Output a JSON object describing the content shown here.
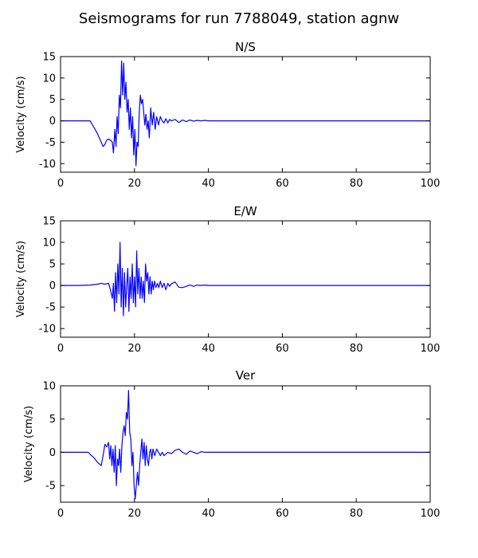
{
  "title": "Seismograms for run 7788049, station agnw",
  "chart_data": [
    {
      "type": "line",
      "title": "N/S",
      "xlabel": "",
      "ylabel": "Velocity (cm/s)",
      "xlim": [
        0,
        100
      ],
      "ylim": [
        -12,
        15
      ],
      "xticks": [
        0,
        20,
        40,
        60,
        80,
        100
      ],
      "yticks": [
        -10,
        -5,
        0,
        5,
        10,
        15
      ],
      "color": "#0000ff",
      "series": [
        {
          "x": [
            0,
            8,
            9,
            10,
            11,
            11.5,
            12,
            12.5,
            13,
            13.5,
            14,
            14.3,
            14.7,
            15,
            15.3,
            15.6,
            15.9,
            16.2,
            16.5,
            16.8,
            17.1,
            17.4,
            17.7,
            18,
            18.3,
            18.6,
            18.9,
            19.2,
            19.5,
            19.8,
            20.1,
            20.4,
            20.7,
            21,
            21.3,
            21.6,
            21.9,
            22.2,
            22.5,
            22.8,
            23.1,
            23.4,
            23.7,
            24,
            24.4,
            24.8,
            25.2,
            25.6,
            26,
            26.5,
            27,
            27.5,
            28,
            28.5,
            29,
            29.5,
            30,
            31,
            32,
            33,
            34,
            35,
            36,
            37,
            38,
            39,
            40,
            41,
            42,
            43,
            44,
            45,
            50,
            60,
            70,
            80,
            90,
            100
          ],
          "y": [
            0,
            0,
            -1.5,
            -3,
            -5,
            -6,
            -5.5,
            -4.5,
            -4.3,
            -4.5,
            -5,
            -7.5,
            -2,
            -6,
            1,
            -3,
            6,
            3,
            14,
            6,
            13.5,
            5,
            9,
            2,
            5,
            -2,
            3,
            -4,
            1,
            -8,
            -2,
            -10.5,
            -5,
            -6,
            2,
            6,
            4,
            5,
            2,
            -1,
            1.5,
            -2,
            0,
            -4,
            3,
            -1,
            2,
            -2,
            1,
            -1,
            1,
            0,
            -0.5,
            0.5,
            -0.5,
            0.3,
            0,
            0.3,
            -0.4,
            0.2,
            -0.2,
            0.2,
            -0.1,
            0.1,
            0,
            0.1,
            0,
            0,
            0,
            0,
            0,
            0,
            0,
            0,
            0,
            0,
            0,
            0
          ]
        }
      ]
    },
    {
      "type": "line",
      "title": "E/W",
      "xlabel": "",
      "ylabel": "Velocity (cm/s)",
      "xlim": [
        0,
        100
      ],
      "ylim": [
        -12,
        15
      ],
      "xticks": [
        0,
        20,
        40,
        60,
        80,
        100
      ],
      "yticks": [
        -10,
        -5,
        0,
        5,
        10,
        15
      ],
      "color": "#0000ff",
      "series": [
        {
          "x": [
            0,
            5,
            8,
            10,
            11,
            12,
            13,
            13.5,
            14,
            14.3,
            14.6,
            14.9,
            15.2,
            15.5,
            15.8,
            16.1,
            16.4,
            16.7,
            17,
            17.3,
            17.6,
            17.9,
            18.2,
            18.5,
            18.8,
            19.1,
            19.4,
            19.7,
            20,
            20.3,
            20.6,
            20.9,
            21.2,
            21.5,
            21.8,
            22.1,
            22.4,
            22.7,
            23,
            23.3,
            23.6,
            23.9,
            24.2,
            24.5,
            24.8,
            25.1,
            25.4,
            25.8,
            26.2,
            26.6,
            27,
            27.5,
            28,
            28.5,
            29,
            29.5,
            30,
            31,
            32,
            33,
            34,
            35,
            36,
            37,
            38,
            39,
            40,
            42,
            44,
            46,
            50,
            60,
            70,
            80,
            90,
            100
          ],
          "y": [
            0,
            0,
            0.1,
            0.3,
            0.5,
            0.3,
            0.5,
            -1,
            -3,
            0.5,
            -6,
            3,
            -4,
            5,
            -2,
            10,
            -5,
            4,
            -7,
            3,
            -5,
            0,
            4,
            -6,
            2,
            -3,
            5,
            -4,
            2,
            -5,
            8,
            -2,
            4,
            -3,
            2,
            -3,
            1,
            -4,
            5,
            1,
            3,
            -2,
            2,
            -2,
            1,
            -1,
            1,
            -0.5,
            0.5,
            -0.5,
            1,
            -0.5,
            0.5,
            -1,
            0.5,
            -0.2,
            0.4,
            0.8,
            -0.4,
            -0.5,
            -0.2,
            0.1,
            -0.2,
            0.1,
            0,
            0.1,
            0,
            0,
            0,
            0,
            0,
            0,
            0,
            0,
            0,
            0
          ]
        }
      ]
    },
    {
      "type": "line",
      "title": "Ver",
      "xlabel": "",
      "ylabel": "Velocity (cm/s)",
      "xlim": [
        0,
        100
      ],
      "ylim": [
        -7.5,
        10
      ],
      "xticks": [
        0,
        20,
        40,
        60,
        80,
        100
      ],
      "yticks": [
        -5,
        0,
        5,
        10
      ],
      "color": "#0000ff",
      "series": [
        {
          "x": [
            0,
            7.5,
            8,
            9,
            10,
            11,
            11.5,
            12,
            12.5,
            13,
            13.3,
            13.6,
            13.9,
            14.2,
            14.5,
            14.8,
            15.1,
            15.4,
            15.7,
            16,
            16.3,
            16.6,
            16.9,
            17.2,
            17.5,
            17.8,
            18.1,
            18.4,
            18.7,
            19,
            19.3,
            19.6,
            19.9,
            20.2,
            20.5,
            20.8,
            21.1,
            21.4,
            21.7,
            22,
            22.3,
            22.6,
            22.9,
            23.2,
            23.5,
            23.8,
            24.1,
            24.4,
            24.7,
            25,
            25.5,
            26,
            26.5,
            27,
            27.5,
            28,
            29,
            30,
            31,
            32,
            33,
            34,
            35,
            36,
            37,
            38,
            39,
            40,
            45,
            50,
            60,
            70,
            80,
            90,
            100
          ],
          "y": [
            0,
            0,
            -0.3,
            -0.8,
            -1.5,
            -2,
            -0.5,
            1.2,
            0.8,
            1.5,
            -1,
            1,
            -2,
            0.5,
            -3,
            1,
            -5,
            -1,
            -2,
            0.5,
            -3,
            1,
            3,
            4,
            2.5,
            6,
            5,
            9.3,
            3,
            2,
            -2,
            0,
            -5,
            -7,
            -5,
            -3,
            -5,
            -2,
            0,
            2,
            -1,
            1.5,
            -2,
            1,
            -1,
            -2,
            0,
            0.5,
            -1,
            0.5,
            -0.5,
            0.5,
            0,
            -0.5,
            0,
            -0.5,
            0,
            -0.2,
            0.3,
            0.5,
            0,
            -0.3,
            0.2,
            0,
            -0.2,
            0.1,
            0,
            0,
            0,
            0,
            0,
            0,
            0,
            0,
            0
          ]
        }
      ]
    }
  ]
}
